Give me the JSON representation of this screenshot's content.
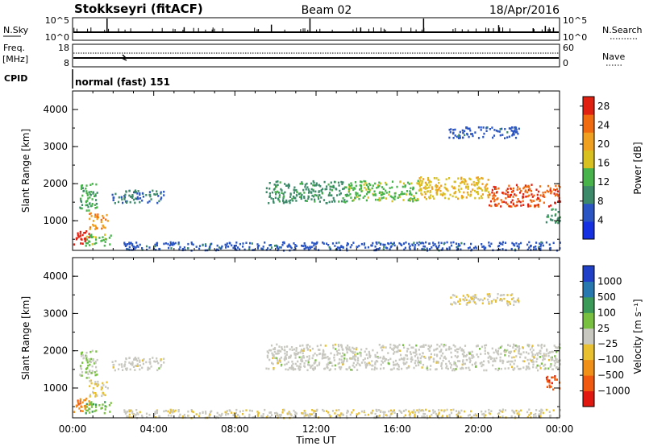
{
  "header": {
    "station": "Stokkseyri (fitACF)",
    "beam": "Beam 02",
    "date": "18/Apr/2016"
  },
  "noise_panel": {
    "left_label": "N.Sky",
    "ticks_left": [
      "10^5",
      "10^0"
    ],
    "ticks_right": [
      "10^5",
      "10^0"
    ],
    "right_label": "N.Search"
  },
  "freq_panel": {
    "left_label_line1": "Freq.",
    "left_label_line2": "[MHz]",
    "ticks_left": [
      "18",
      "8"
    ],
    "ticks_right": [
      "60",
      "0"
    ],
    "right_label": "Nave"
  },
  "cpid": {
    "label": "CPID",
    "value": "normal (fast) 151"
  },
  "colors": {
    "power": [
      "#1530e0",
      "#2a55c2",
      "#3d8a6a",
      "#47b34a",
      "#d8c020",
      "#f0a020",
      "#f06a10",
      "#e02010"
    ],
    "velocity": [
      "#2040c8",
      "#2878b0",
      "#3c9a58",
      "#78c040",
      "#c8c8c0",
      "#e8c030",
      "#f09018",
      "#f05a10",
      "#e01810"
    ]
  },
  "chart_data": [
    {
      "type": "heatmap",
      "name": "power",
      "ylabel": "Slant Range [km]",
      "y_ticks": [
        "1000",
        "2000",
        "3000",
        "4000"
      ],
      "ylim": [
        200,
        4500
      ],
      "colorbar_label": "Power [dB]",
      "colorbar_ticks": [
        "4",
        "8",
        "12",
        "16",
        "20",
        "24",
        "28"
      ],
      "colorbar_range": [
        0,
        30
      ],
      "regions": [
        {
          "t0": 0.0,
          "t1": 0.8,
          "r0": 350,
          "r1": 750,
          "value": 28
        },
        {
          "t0": 0.3,
          "t1": 1.2,
          "r0": 1300,
          "r1": 2050,
          "value": 12
        },
        {
          "t0": 0.8,
          "t1": 1.7,
          "r0": 800,
          "r1": 1250,
          "value": 22
        },
        {
          "t0": 0.6,
          "t1": 1.9,
          "r0": 350,
          "r1": 650,
          "value": 14
        },
        {
          "t0": 1.9,
          "t1": 4.5,
          "r0": 1500,
          "r1": 1850,
          "value": 8
        },
        {
          "t0": 2.5,
          "t1": 24.0,
          "r0": 220,
          "r1": 450,
          "value": 6
        },
        {
          "t0": 9.5,
          "t1": 13.5,
          "r0": 1500,
          "r1": 2100,
          "value": 10
        },
        {
          "t0": 13.5,
          "t1": 17.0,
          "r0": 1550,
          "r1": 2100,
          "value": 14
        },
        {
          "t0": 17.0,
          "t1": 20.5,
          "r0": 1600,
          "r1": 2200,
          "value": 18
        },
        {
          "t0": 20.5,
          "t1": 24.0,
          "r0": 1400,
          "r1": 2000,
          "value": 26
        },
        {
          "t0": 18.5,
          "t1": 22.0,
          "r0": 3250,
          "r1": 3550,
          "value": 6
        },
        {
          "t0": 23.3,
          "t1": 24.0,
          "r0": 950,
          "r1": 1350,
          "value": 10
        }
      ]
    },
    {
      "type": "heatmap",
      "name": "velocity",
      "ylabel": "Slant Range [km]",
      "y_ticks": [
        "1000",
        "2000",
        "3000",
        "4000"
      ],
      "ylim": [
        200,
        4500
      ],
      "colorbar_label": "Velocity [m s⁻¹]",
      "colorbar_ticks": [
        "1000",
        "500",
        "100",
        "25",
        "−25",
        "−100",
        "−500",
        "−1000"
      ],
      "colorbar_range": [
        -1000,
        1000
      ],
      "regions": [
        {
          "t0": 0.0,
          "t1": 0.8,
          "r0": 350,
          "r1": 750,
          "value": -500
        },
        {
          "t0": 0.3,
          "t1": 1.2,
          "r0": 1300,
          "r1": 2050,
          "value": 100
        },
        {
          "t0": 0.8,
          "t1": 1.7,
          "r0": 800,
          "r1": 1250,
          "value": -100
        },
        {
          "t0": 0.6,
          "t1": 1.9,
          "r0": 350,
          "r1": 650,
          "value": 300
        },
        {
          "t0": 1.9,
          "t1": 4.5,
          "r0": 1500,
          "r1": 1850,
          "value": 0
        },
        {
          "t0": 2.5,
          "t1": 24.0,
          "r0": 220,
          "r1": 450,
          "value": -60
        },
        {
          "t0": 9.5,
          "t1": 24.0,
          "r0": 1500,
          "r1": 2200,
          "value": 0
        },
        {
          "t0": 18.5,
          "t1": 22.0,
          "r0": 3250,
          "r1": 3550,
          "value": -100
        },
        {
          "t0": 23.3,
          "t1": 24.0,
          "r0": 950,
          "r1": 1350,
          "value": -700
        }
      ]
    }
  ],
  "x_axis": {
    "ticks": [
      "00:00",
      "04:00",
      "08:00",
      "12:00",
      "16:00",
      "20:00",
      "00:00"
    ],
    "label": "Time UT",
    "range_hours": [
      0,
      24
    ]
  }
}
